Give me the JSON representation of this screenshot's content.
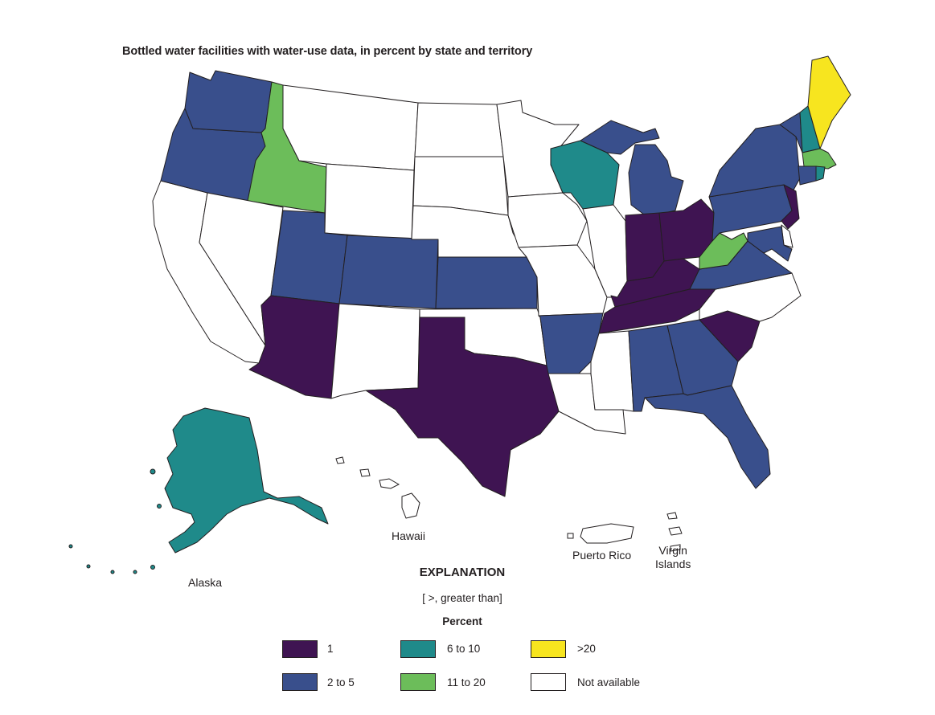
{
  "title": "Bottled water facilities with water-use data, in percent by state and territory",
  "colors": {
    "c1": "#3f1452",
    "c2to5": "#394f8c",
    "c6to10": "#1f8a8a",
    "c11to20": "#6cbd5a",
    "cgt20": "#f7e51f",
    "cna": "#ffffff",
    "outline": "#231f20"
  },
  "labels": {
    "alaska": "Alaska",
    "hawaii": "Hawaii",
    "puerto_rico": "Puerto Rico",
    "virgin_islands_1": "Virgin",
    "virgin_islands_2": "Islands"
  },
  "explanation": {
    "heading": "EXPLANATION",
    "note": "[ >, greater than]",
    "unit": "Percent",
    "classes": [
      {
        "key": "c1",
        "label": "1"
      },
      {
        "key": "c6to10",
        "label": "6 to 10"
      },
      {
        "key": "cgt20",
        "label": ">20"
      },
      {
        "key": "c2to5",
        "label": "2 to 5"
      },
      {
        "key": "c11to20",
        "label": "11 to 20"
      },
      {
        "key": "cna",
        "label": "Not available"
      }
    ]
  },
  "states": [
    {
      "name": "Washington",
      "class": "c2to5"
    },
    {
      "name": "Oregon",
      "class": "c2to5"
    },
    {
      "name": "Idaho",
      "class": "c11to20"
    },
    {
      "name": "Utah",
      "class": "c2to5"
    },
    {
      "name": "Colorado",
      "class": "c2to5"
    },
    {
      "name": "Kansas",
      "class": "c2to5"
    },
    {
      "name": "Arizona",
      "class": "c1"
    },
    {
      "name": "Texas",
      "class": "c1"
    },
    {
      "name": "Arkansas",
      "class": "c2to5"
    },
    {
      "name": "Wisconsin",
      "class": "c6to10"
    },
    {
      "name": "Michigan",
      "class": "c2to5"
    },
    {
      "name": "Indiana",
      "class": "c1"
    },
    {
      "name": "Ohio",
      "class": "c1"
    },
    {
      "name": "Kentucky",
      "class": "c1"
    },
    {
      "name": "Tennessee",
      "class": "c1"
    },
    {
      "name": "Alabama",
      "class": "c2to5"
    },
    {
      "name": "Georgia",
      "class": "c2to5"
    },
    {
      "name": "Florida",
      "class": "c2to5"
    },
    {
      "name": "South Carolina",
      "class": "c1"
    },
    {
      "name": "Virginia",
      "class": "c2to5"
    },
    {
      "name": "West Virginia",
      "class": "c11to20"
    },
    {
      "name": "Pennsylvania",
      "class": "c2to5"
    },
    {
      "name": "New York",
      "class": "c2to5"
    },
    {
      "name": "New Jersey",
      "class": "c1"
    },
    {
      "name": "Vermont",
      "class": "c2to5"
    },
    {
      "name": "New Hampshire",
      "class": "c6to10"
    },
    {
      "name": "Maine",
      "class": "cgt20"
    },
    {
      "name": "Massachusetts",
      "class": "c11to20"
    },
    {
      "name": "Connecticut",
      "class": "c2to5"
    },
    {
      "name": "Rhode Island",
      "class": "c6to10"
    },
    {
      "name": "Maryland",
      "class": "c2to5"
    },
    {
      "name": "Alaska",
      "class": "c6to10"
    },
    {
      "name": "California",
      "class": "cna"
    },
    {
      "name": "Nevada",
      "class": "cna"
    },
    {
      "name": "Montana",
      "class": "cna"
    },
    {
      "name": "Wyoming",
      "class": "cna"
    },
    {
      "name": "New Mexico",
      "class": "cna"
    },
    {
      "name": "North Dakota",
      "class": "cna"
    },
    {
      "name": "South Dakota",
      "class": "cna"
    },
    {
      "name": "Nebraska",
      "class": "cna"
    },
    {
      "name": "Oklahoma",
      "class": "cna"
    },
    {
      "name": "Minnesota",
      "class": "cna"
    },
    {
      "name": "Iowa",
      "class": "cna"
    },
    {
      "name": "Missouri",
      "class": "cna"
    },
    {
      "name": "Illinois",
      "class": "cna"
    },
    {
      "name": "Louisiana",
      "class": "cna"
    },
    {
      "name": "Mississippi",
      "class": "cna"
    },
    {
      "name": "North Carolina",
      "class": "cna"
    },
    {
      "name": "Delaware",
      "class": "cna"
    },
    {
      "name": "Hawaii",
      "class": "cna"
    },
    {
      "name": "Puerto Rico",
      "class": "cna"
    },
    {
      "name": "Virgin Islands",
      "class": "cna"
    }
  ]
}
